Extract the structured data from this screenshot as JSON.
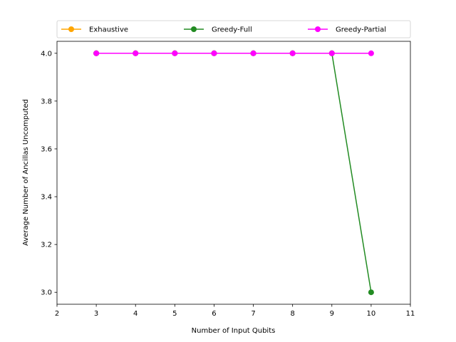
{
  "chart_data": {
    "type": "line",
    "xlabel": "Number of Input Qubits",
    "ylabel": "Average Number of Ancillas Uncomputed",
    "xlim": [
      2,
      11
    ],
    "ylim": [
      2.95,
      4.05
    ],
    "xticks": [
      2,
      3,
      4,
      5,
      6,
      7,
      8,
      9,
      10,
      11
    ],
    "yticks": [
      3.0,
      3.2,
      3.4,
      3.6,
      3.8,
      4.0
    ],
    "ytick_labels": [
      "3.0",
      "3.2",
      "3.4",
      "3.6",
      "3.8",
      "4.0"
    ],
    "grid": false,
    "legend_position": "top, above plot, 3 columns",
    "series": [
      {
        "name": "Exhaustive",
        "color": "#ffa500",
        "marker": "circle",
        "x": [
          3,
          4,
          5,
          6,
          7,
          8,
          9
        ],
        "y": [
          4.0,
          4.0,
          4.0,
          4.0,
          4.0,
          4.0,
          4.0
        ]
      },
      {
        "name": "Greedy-Full",
        "color": "#228b22",
        "marker": "circle",
        "x": [
          3,
          4,
          5,
          6,
          7,
          8,
          9,
          10
        ],
        "y": [
          4.0,
          4.0,
          4.0,
          4.0,
          4.0,
          4.0,
          4.0,
          3.0
        ]
      },
      {
        "name": "Greedy-Partial",
        "color": "#ff00ff",
        "marker": "circle",
        "x": [
          3,
          4,
          5,
          6,
          7,
          8,
          9,
          10
        ],
        "y": [
          4.0,
          4.0,
          4.0,
          4.0,
          4.0,
          4.0,
          4.0,
          4.0
        ]
      }
    ]
  }
}
